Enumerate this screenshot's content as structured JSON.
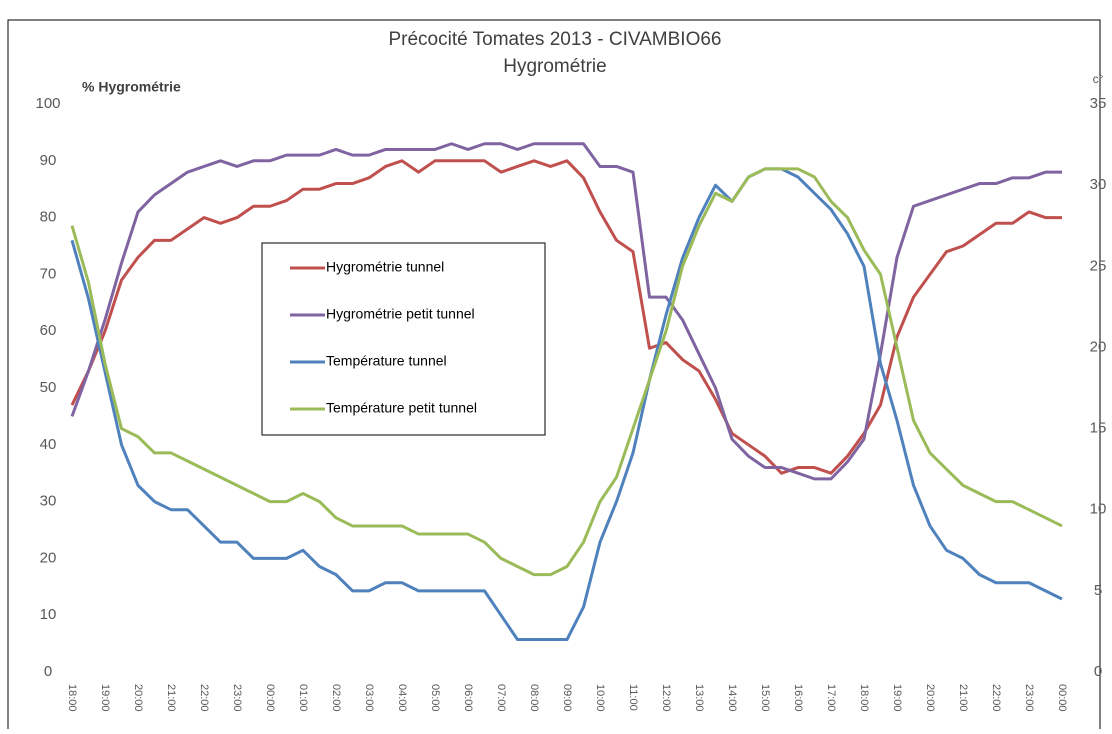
{
  "chart_data": {
    "type": "line",
    "title": "Précocité Tomates 2013 - CIVAMBIO66",
    "subtitle": "Hygrométrie",
    "y_label": "% Hygrométrie",
    "y2_label": "c°",
    "categories": [
      "18:00",
      null,
      "19:00",
      null,
      "20:00",
      null,
      "21:00",
      null,
      "22:00",
      null,
      "23:00",
      null,
      "00:00",
      null,
      "01:00",
      null,
      "02:00",
      null,
      "03:00",
      null,
      "04:00",
      null,
      "05:00",
      null,
      "06:00",
      null,
      "07:00",
      null,
      "08:00",
      null,
      "09:00",
      null,
      "10:00",
      null,
      "11:00",
      null,
      "12:00",
      null,
      "13:00",
      null,
      "14:00",
      null,
      "15:00",
      null,
      "16:00",
      null,
      "17:00",
      null,
      "18:00",
      null,
      "19:00",
      null,
      "20:00",
      null,
      "21:00",
      null,
      "22:00",
      null,
      "23:00",
      null,
      "00:00"
    ],
    "series": [
      {
        "name": "Hygrométrie tunnel",
        "color": "#c0504d",
        "values": [
          47,
          53,
          60,
          69,
          73,
          76,
          76,
          78,
          80,
          79,
          80,
          82,
          82,
          83,
          85,
          85,
          86,
          86,
          87,
          89,
          90,
          88,
          90,
          90,
          90,
          90,
          88,
          89,
          90,
          89,
          90,
          87,
          81,
          76,
          74,
          57,
          58,
          55,
          53,
          48,
          42,
          40,
          38,
          35,
          36,
          36,
          35,
          38,
          42,
          47,
          59,
          66,
          70,
          74,
          75,
          77,
          79,
          79,
          81,
          80,
          80
        ]
      },
      {
        "name": "Hygrométrie petit tunnel",
        "color": "#8064a2",
        "values": [
          45,
          53,
          62,
          72,
          81,
          84,
          86,
          88,
          89,
          90,
          89,
          90,
          90,
          91,
          91,
          91,
          92,
          91,
          91,
          92,
          92,
          92,
          92,
          93,
          92,
          93,
          93,
          92,
          93,
          93,
          93,
          93,
          89,
          89,
          88,
          66,
          66,
          62,
          56,
          50,
          41,
          38,
          36,
          36,
          35,
          34,
          34,
          37,
          41,
          56,
          73,
          82,
          83,
          84,
          85,
          86,
          86,
          87,
          87,
          88,
          88
        ]
      },
      {
        "name": "Température tunnel",
        "color": "#4f81bd",
        "axis": "y2",
        "values": [
          26.6,
          23,
          18.5,
          14,
          11.5,
          10.5,
          10,
          10,
          9,
          8,
          8,
          7,
          7,
          7,
          7.5,
          6.5,
          6,
          5,
          5,
          5.5,
          5.5,
          5,
          5,
          5,
          5,
          5,
          3.5,
          2,
          2,
          2,
          2,
          4,
          8,
          10.5,
          13.5,
          18,
          22,
          25.5,
          28,
          30,
          29,
          30.5,
          31,
          31,
          30.5,
          29.5,
          28.5,
          27,
          25,
          19,
          15.5,
          11.5,
          9,
          7.5,
          7,
          6,
          5.5,
          5.5,
          5.5,
          5,
          4.5
        ]
      },
      {
        "name": "Température petit tunnel",
        "color": "#9bbb59",
        "axis": "y2",
        "values": [
          27.5,
          24,
          19,
          15,
          14.5,
          13.5,
          13.5,
          13,
          12.5,
          12,
          11.5,
          11,
          10.5,
          10.5,
          11,
          10.5,
          9.5,
          9,
          9,
          9,
          9,
          8.5,
          8.5,
          8.5,
          8.5,
          8,
          7,
          6.5,
          6,
          6,
          6.5,
          8,
          10.5,
          12,
          15,
          18,
          21,
          25,
          27.5,
          29.5,
          29,
          30.5,
          31,
          31,
          31,
          30.5,
          29,
          28,
          26,
          24.5,
          20,
          15.5,
          13.5,
          12.5,
          11.5,
          11,
          10.5,
          10.5,
          10,
          9.5,
          9
        ]
      }
    ],
    "ylim": [
      0,
      100
    ],
    "yticks": [
      0,
      10,
      20,
      30,
      40,
      50,
      60,
      70,
      80,
      90,
      100
    ],
    "y2lim": [
      0,
      35
    ],
    "y2ticks": [
      0,
      5,
      10,
      15,
      20,
      25,
      30,
      35
    ],
    "grid": false
  }
}
